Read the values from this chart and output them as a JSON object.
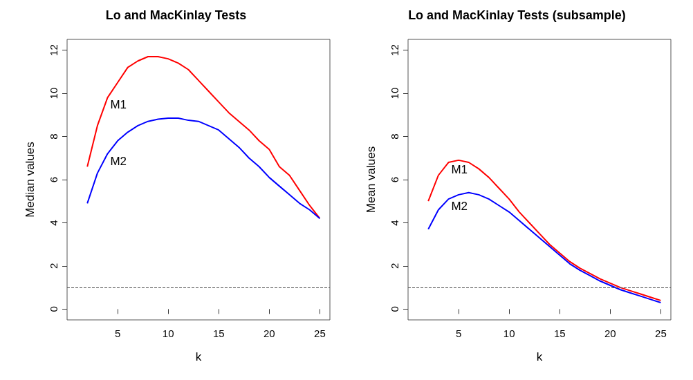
{
  "chart_data": [
    {
      "type": "line",
      "title": "Lo and MacKinlay Tests",
      "xlabel": "k",
      "ylabel": "Median values",
      "x": [
        2,
        3,
        4,
        5,
        6,
        7,
        8,
        9,
        10,
        11,
        12,
        13,
        14,
        15,
        16,
        17,
        18,
        19,
        20,
        21,
        22,
        23,
        24,
        25
      ],
      "series": [
        {
          "color": "#ff0000",
          "values": [
            6.6,
            8.5,
            9.8,
            10.5,
            11.2,
            11.5,
            11.7,
            11.7,
            11.6,
            11.4,
            11.1,
            10.6,
            10.1,
            9.6,
            9.1,
            8.7,
            8.3,
            7.8,
            7.4,
            6.6,
            6.2,
            5.5,
            4.8,
            4.2
          ]
        },
        {
          "color": "#0000ff",
          "values": [
            4.9,
            6.3,
            7.2,
            7.8,
            8.2,
            8.5,
            8.7,
            8.8,
            8.85,
            8.85,
            8.75,
            8.7,
            8.5,
            8.3,
            7.9,
            7.5,
            7.0,
            6.6,
            6.1,
            5.7,
            5.3,
            4.9,
            4.6,
            4.2
          ]
        }
      ],
      "annotations": [
        "M1",
        "M2"
      ],
      "ref_lines": [
        {
          "axis": "y",
          "value": 1,
          "color": "#555555",
          "line_style": "dashed"
        }
      ],
      "xlim": [
        0,
        26
      ],
      "xticks": [
        5,
        10,
        15,
        20,
        25
      ],
      "ylim": [
        -0.5,
        12.5
      ],
      "yticks": [
        0,
        2,
        4,
        6,
        8,
        10,
        12
      ],
      "grid": false,
      "marker": "none",
      "line_style": "solid"
    },
    {
      "type": "line",
      "title": "Lo and MacKinlay Tests (subsample)",
      "xlabel": "k",
      "ylabel": "Mean values",
      "x": [
        2,
        3,
        4,
        5,
        6,
        7,
        8,
        9,
        10,
        11,
        12,
        13,
        14,
        15,
        16,
        17,
        18,
        19,
        20,
        21,
        22,
        23,
        24,
        25
      ],
      "series": [
        {
          "color": "#ff0000",
          "values": [
            5.0,
            6.2,
            6.8,
            6.9,
            6.8,
            6.5,
            6.1,
            5.6,
            5.1,
            4.5,
            4.0,
            3.5,
            3.0,
            2.6,
            2.2,
            1.9,
            1.65,
            1.4,
            1.2,
            1.0,
            0.85,
            0.7,
            0.55,
            0.4
          ]
        },
        {
          "color": "#0000ff",
          "values": [
            3.7,
            4.6,
            5.1,
            5.3,
            5.4,
            5.3,
            5.1,
            4.8,
            4.5,
            4.1,
            3.7,
            3.3,
            2.9,
            2.5,
            2.1,
            1.8,
            1.55,
            1.3,
            1.1,
            0.9,
            0.75,
            0.6,
            0.45,
            0.3
          ]
        }
      ],
      "annotations": [
        "M1",
        "M2"
      ],
      "ref_lines": [
        {
          "axis": "y",
          "value": 1,
          "color": "#555555",
          "line_style": "dashed"
        }
      ],
      "xlim": [
        0,
        26
      ],
      "xticks": [
        5,
        10,
        15,
        20,
        25
      ],
      "ylim": [
        -0.5,
        12.5
      ],
      "yticks": [
        0,
        2,
        4,
        6,
        8,
        10,
        12
      ],
      "grid": false,
      "marker": "none",
      "line_style": "solid"
    }
  ]
}
